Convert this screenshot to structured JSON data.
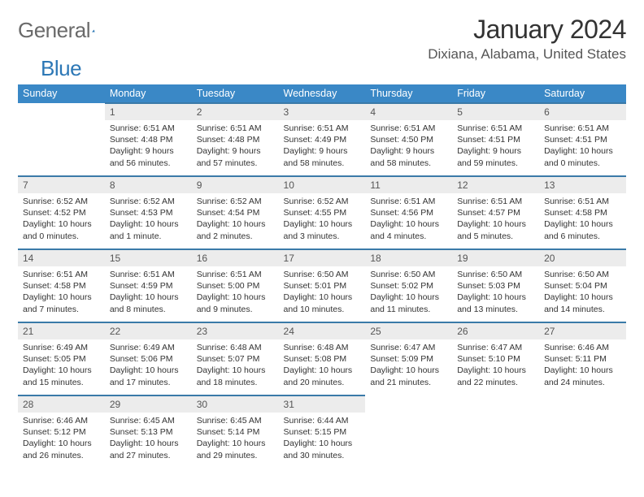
{
  "brand": {
    "name1": "General",
    "name2": "Blue",
    "shape_color": "#2d78b6"
  },
  "header": {
    "month": "January 2024",
    "location": "Dixiana, Alabama, United States"
  },
  "styling": {
    "header_bg": "#3a88c6",
    "header_text": "#ffffff",
    "daynum_bg": "#ececec",
    "daynum_text": "#555555",
    "body_text": "#333333",
    "rule_color": "#3a7aa8",
    "header_font_size": 12.5,
    "daynum_font_size": 12,
    "detail_font_size": 10.5
  },
  "daysOfWeek": [
    "Sunday",
    "Monday",
    "Tuesday",
    "Wednesday",
    "Thursday",
    "Friday",
    "Saturday"
  ],
  "weeks": [
    [
      null,
      {
        "n": "1",
        "sr": "6:51 AM",
        "ss": "4:48 PM",
        "dl": "9 hours and 56 minutes."
      },
      {
        "n": "2",
        "sr": "6:51 AM",
        "ss": "4:48 PM",
        "dl": "9 hours and 57 minutes."
      },
      {
        "n": "3",
        "sr": "6:51 AM",
        "ss": "4:49 PM",
        "dl": "9 hours and 58 minutes."
      },
      {
        "n": "4",
        "sr": "6:51 AM",
        "ss": "4:50 PM",
        "dl": "9 hours and 58 minutes."
      },
      {
        "n": "5",
        "sr": "6:51 AM",
        "ss": "4:51 PM",
        "dl": "9 hours and 59 minutes."
      },
      {
        "n": "6",
        "sr": "6:51 AM",
        "ss": "4:51 PM",
        "dl": "10 hours and 0 minutes."
      }
    ],
    [
      {
        "n": "7",
        "sr": "6:52 AM",
        "ss": "4:52 PM",
        "dl": "10 hours and 0 minutes."
      },
      {
        "n": "8",
        "sr": "6:52 AM",
        "ss": "4:53 PM",
        "dl": "10 hours and 1 minute."
      },
      {
        "n": "9",
        "sr": "6:52 AM",
        "ss": "4:54 PM",
        "dl": "10 hours and 2 minutes."
      },
      {
        "n": "10",
        "sr": "6:52 AM",
        "ss": "4:55 PM",
        "dl": "10 hours and 3 minutes."
      },
      {
        "n": "11",
        "sr": "6:51 AM",
        "ss": "4:56 PM",
        "dl": "10 hours and 4 minutes."
      },
      {
        "n": "12",
        "sr": "6:51 AM",
        "ss": "4:57 PM",
        "dl": "10 hours and 5 minutes."
      },
      {
        "n": "13",
        "sr": "6:51 AM",
        "ss": "4:58 PM",
        "dl": "10 hours and 6 minutes."
      }
    ],
    [
      {
        "n": "14",
        "sr": "6:51 AM",
        "ss": "4:58 PM",
        "dl": "10 hours and 7 minutes."
      },
      {
        "n": "15",
        "sr": "6:51 AM",
        "ss": "4:59 PM",
        "dl": "10 hours and 8 minutes."
      },
      {
        "n": "16",
        "sr": "6:51 AM",
        "ss": "5:00 PM",
        "dl": "10 hours and 9 minutes."
      },
      {
        "n": "17",
        "sr": "6:50 AM",
        "ss": "5:01 PM",
        "dl": "10 hours and 10 minutes."
      },
      {
        "n": "18",
        "sr": "6:50 AM",
        "ss": "5:02 PM",
        "dl": "10 hours and 11 minutes."
      },
      {
        "n": "19",
        "sr": "6:50 AM",
        "ss": "5:03 PM",
        "dl": "10 hours and 13 minutes."
      },
      {
        "n": "20",
        "sr": "6:50 AM",
        "ss": "5:04 PM",
        "dl": "10 hours and 14 minutes."
      }
    ],
    [
      {
        "n": "21",
        "sr": "6:49 AM",
        "ss": "5:05 PM",
        "dl": "10 hours and 15 minutes."
      },
      {
        "n": "22",
        "sr": "6:49 AM",
        "ss": "5:06 PM",
        "dl": "10 hours and 17 minutes."
      },
      {
        "n": "23",
        "sr": "6:48 AM",
        "ss": "5:07 PM",
        "dl": "10 hours and 18 minutes."
      },
      {
        "n": "24",
        "sr": "6:48 AM",
        "ss": "5:08 PM",
        "dl": "10 hours and 20 minutes."
      },
      {
        "n": "25",
        "sr": "6:47 AM",
        "ss": "5:09 PM",
        "dl": "10 hours and 21 minutes."
      },
      {
        "n": "26",
        "sr": "6:47 AM",
        "ss": "5:10 PM",
        "dl": "10 hours and 22 minutes."
      },
      {
        "n": "27",
        "sr": "6:46 AM",
        "ss": "5:11 PM",
        "dl": "10 hours and 24 minutes."
      }
    ],
    [
      {
        "n": "28",
        "sr": "6:46 AM",
        "ss": "5:12 PM",
        "dl": "10 hours and 26 minutes."
      },
      {
        "n": "29",
        "sr": "6:45 AM",
        "ss": "5:13 PM",
        "dl": "10 hours and 27 minutes."
      },
      {
        "n": "30",
        "sr": "6:45 AM",
        "ss": "5:14 PM",
        "dl": "10 hours and 29 minutes."
      },
      {
        "n": "31",
        "sr": "6:44 AM",
        "ss": "5:15 PM",
        "dl": "10 hours and 30 minutes."
      },
      null,
      null,
      null
    ]
  ],
  "labels": {
    "sunrise": "Sunrise: ",
    "sunset": "Sunset: ",
    "daylight": "Daylight: "
  }
}
